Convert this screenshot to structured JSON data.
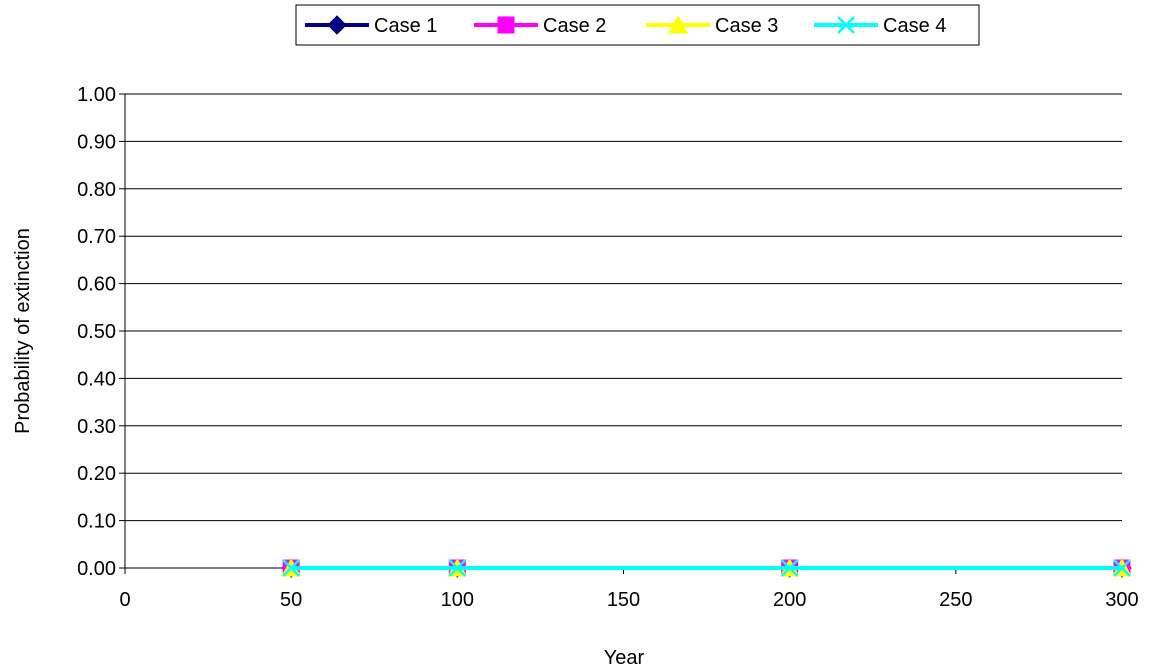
{
  "chart_data": {
    "type": "line",
    "title": "",
    "xlabel": "Year",
    "ylabel": "Probability of extinction",
    "xlim": [
      0,
      300
    ],
    "ylim": [
      0,
      1
    ],
    "xticks": [
      "0",
      "50",
      "100",
      "150",
      "200",
      "250",
      "300"
    ],
    "yticks": [
      "0.00",
      "0.10",
      "0.20",
      "0.30",
      "0.40",
      "0.50",
      "0.60",
      "0.70",
      "0.80",
      "0.90",
      "1.00"
    ],
    "grid": "horizontal",
    "legend_position": "top",
    "x": [
      50,
      100,
      200,
      300
    ],
    "series": [
      {
        "name": "Case 1",
        "values": [
          0,
          0,
          0,
          0
        ],
        "color": "#000080",
        "marker": "diamond"
      },
      {
        "name": "Case 2",
        "values": [
          0,
          0,
          0,
          0
        ],
        "color": "#FF00FF",
        "marker": "square"
      },
      {
        "name": "Case 3",
        "values": [
          0,
          0,
          0,
          0
        ],
        "color": "#FFFF00",
        "marker": "triangle"
      },
      {
        "name": "Case 4",
        "values": [
          0,
          0,
          0,
          0
        ],
        "color": "#00FFFF",
        "marker": "x"
      }
    ]
  }
}
